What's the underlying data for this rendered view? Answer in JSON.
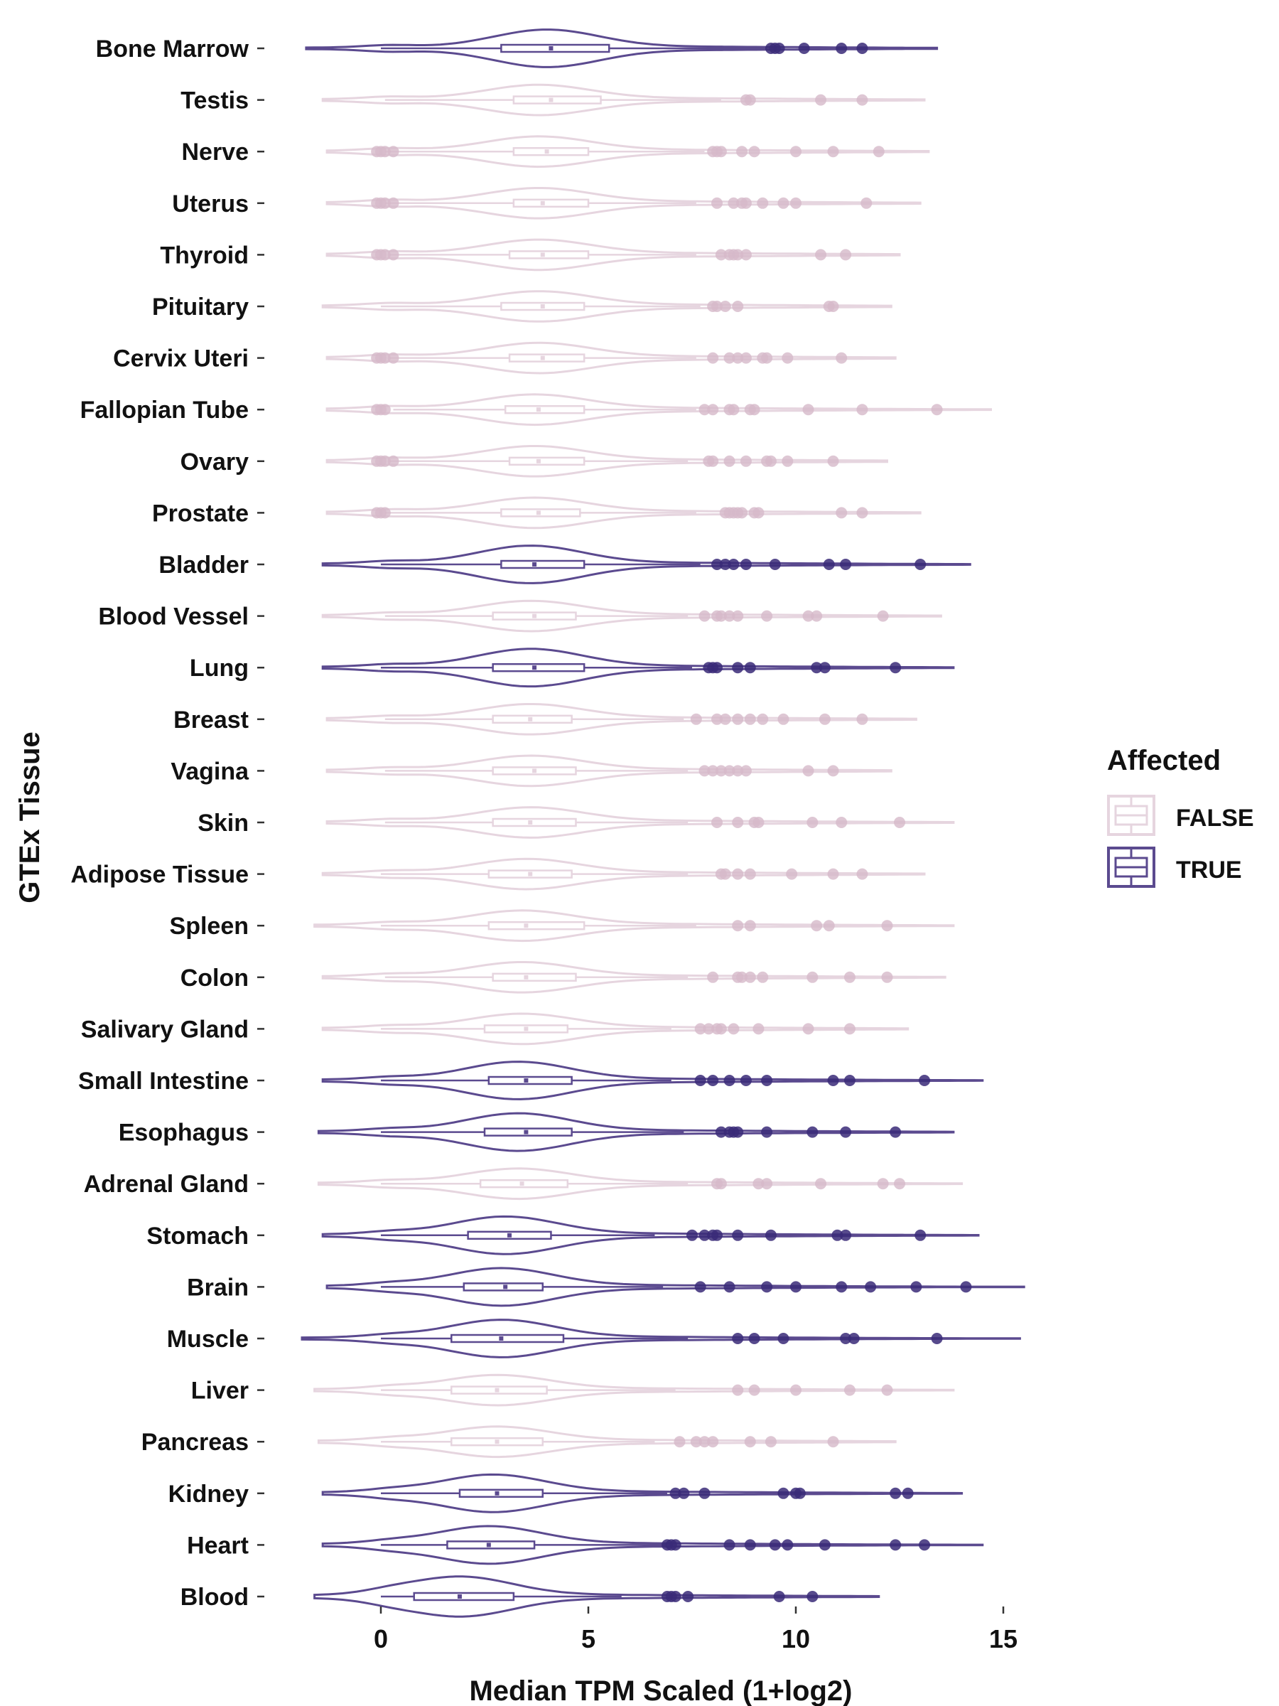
{
  "chart_data": {
    "type": "violin",
    "xlabel": "Median TPM Scaled (1+log2)",
    "ylabel": "GTEx Tissue",
    "xlim": [
      -1.9,
      15.5
    ],
    "xticks": [
      0,
      5,
      10,
      15
    ],
    "xtick_labels": [
      "0",
      "5",
      "10",
      "15"
    ],
    "grid": false,
    "legend": {
      "title": "Affected",
      "placement": "right",
      "entries": [
        {
          "label": "FALSE",
          "color": "#e6d5df"
        },
        {
          "label": "TRUE",
          "color": "#5b4a8f"
        }
      ]
    },
    "colors": {
      "FALSE": "#e6d5df",
      "TRUE": "#5b4a8f",
      "TRUE_point": "#3a2a78",
      "FALSE_point": "#d6b9c9"
    },
    "categories": [
      "Bone Marrow",
      "Testis",
      "Nerve",
      "Uterus",
      "Thyroid",
      "Pituitary",
      "Cervix Uteri",
      "Fallopian Tube",
      "Ovary",
      "Prostate",
      "Bladder",
      "Blood Vessel",
      "Lung",
      "Breast",
      "Vagina",
      "Skin",
      "Adipose Tissue",
      "Spleen",
      "Colon",
      "Salivary Gland",
      "Small Intestine",
      "Esophagus",
      "Adrenal Gland",
      "Stomach",
      "Brain",
      "Muscle",
      "Liver",
      "Pancreas",
      "Kidney",
      "Heart",
      "Blood"
    ],
    "series": [
      {
        "tissue": "Bone Marrow",
        "affected": true,
        "min": -1.8,
        "max": 13.4,
        "q1": 2.9,
        "median": 4.1,
        "q3": 5.5,
        "wlo": 0.0,
        "whi": 9.3,
        "mode": 4.0,
        "width": 0.7,
        "outliers": [
          9.4,
          9.5,
          9.6,
          10.2,
          11.1,
          11.6
        ]
      },
      {
        "tissue": "Testis",
        "affected": false,
        "min": -1.4,
        "max": 13.1,
        "q1": 3.2,
        "median": 4.1,
        "q3": 5.3,
        "wlo": 0.1,
        "whi": 8.2,
        "mode": 3.8,
        "width": 0.55,
        "outliers": [
          8.8,
          8.9,
          10.6,
          11.6
        ]
      },
      {
        "tissue": "Nerve",
        "affected": false,
        "min": -1.3,
        "max": 13.2,
        "q1": 3.2,
        "median": 4.0,
        "q3": 5.0,
        "wlo": 0.1,
        "whi": 7.8,
        "mode": 3.8,
        "width": 0.55,
        "outliers": [
          -0.1,
          0.0,
          0.1,
          0.3,
          8.0,
          8.1,
          8.2,
          8.7,
          9.0,
          10.0,
          10.9,
          12.0
        ]
      },
      {
        "tissue": "Uterus",
        "affected": false,
        "min": -1.3,
        "max": 13.0,
        "q1": 3.2,
        "median": 3.9,
        "q3": 5.0,
        "wlo": 0.1,
        "whi": 7.6,
        "mode": 3.8,
        "width": 0.55,
        "outliers": [
          -0.1,
          0.0,
          0.1,
          0.3,
          8.1,
          8.5,
          8.7,
          8.8,
          9.2,
          9.7,
          10.0,
          11.7
        ]
      },
      {
        "tissue": "Thyroid",
        "affected": false,
        "min": -1.3,
        "max": 12.5,
        "q1": 3.1,
        "median": 3.9,
        "q3": 5.0,
        "wlo": 0.2,
        "whi": 7.6,
        "mode": 3.8,
        "width": 0.55,
        "outliers": [
          -0.1,
          0.0,
          0.1,
          0.3,
          8.2,
          8.4,
          8.5,
          8.6,
          8.8,
          10.6,
          11.2
        ]
      },
      {
        "tissue": "Pituitary",
        "affected": false,
        "min": -1.4,
        "max": 12.3,
        "q1": 2.9,
        "median": 3.9,
        "q3": 4.9,
        "wlo": 0.0,
        "whi": 7.7,
        "mode": 3.8,
        "width": 0.55,
        "outliers": [
          8.0,
          8.1,
          8.3,
          8.6,
          10.8,
          10.9
        ]
      },
      {
        "tissue": "Cervix Uteri",
        "affected": false,
        "min": -1.3,
        "max": 12.4,
        "q1": 3.1,
        "median": 3.9,
        "q3": 4.9,
        "wlo": 0.2,
        "whi": 7.6,
        "mode": 3.8,
        "width": 0.55,
        "outliers": [
          -0.1,
          0.0,
          0.1,
          0.3,
          8.0,
          8.4,
          8.6,
          8.8,
          9.2,
          9.3,
          9.8,
          11.1
        ]
      },
      {
        "tissue": "Fallopian Tube",
        "affected": false,
        "min": -1.3,
        "max": 14.7,
        "q1": 3.0,
        "median": 3.8,
        "q3": 4.9,
        "wlo": 0.3,
        "whi": 7.6,
        "mode": 3.7,
        "width": 0.55,
        "outliers": [
          -0.1,
          0.0,
          0.1,
          7.8,
          8.0,
          8.4,
          8.5,
          8.9,
          9.0,
          10.3,
          11.6,
          13.4
        ]
      },
      {
        "tissue": "Ovary",
        "affected": false,
        "min": -1.3,
        "max": 12.2,
        "q1": 3.1,
        "median": 3.8,
        "q3": 4.9,
        "wlo": 0.2,
        "whi": 7.4,
        "mode": 3.7,
        "width": 0.55,
        "outliers": [
          -0.1,
          0.0,
          0.1,
          0.3,
          7.9,
          8.0,
          8.4,
          8.8,
          9.3,
          9.4,
          9.8,
          10.9
        ]
      },
      {
        "tissue": "Prostate",
        "affected": false,
        "min": -1.3,
        "max": 13.0,
        "q1": 2.9,
        "median": 3.8,
        "q3": 4.8,
        "wlo": 0.1,
        "whi": 7.6,
        "mode": 3.7,
        "width": 0.55,
        "outliers": [
          -0.1,
          0.0,
          0.1,
          8.3,
          8.4,
          8.5,
          8.6,
          8.7,
          9.0,
          9.1,
          11.1,
          11.6
        ]
      },
      {
        "tissue": "Bladder",
        "affected": true,
        "min": -1.4,
        "max": 14.2,
        "q1": 2.9,
        "median": 3.7,
        "q3": 4.9,
        "wlo": 0.0,
        "whi": 7.7,
        "mode": 3.6,
        "width": 0.7,
        "outliers": [
          8.1,
          8.3,
          8.5,
          8.8,
          9.5,
          10.8,
          11.2,
          13.0
        ]
      },
      {
        "tissue": "Blood Vessel",
        "affected": false,
        "min": -1.4,
        "max": 13.5,
        "q1": 2.7,
        "median": 3.7,
        "q3": 4.7,
        "wlo": 0.1,
        "whi": 7.4,
        "mode": 3.6,
        "width": 0.55,
        "outliers": [
          7.8,
          8.1,
          8.2,
          8.4,
          8.6,
          9.3,
          10.3,
          10.5,
          12.1
        ]
      },
      {
        "tissue": "Lung",
        "affected": true,
        "min": -1.4,
        "max": 13.8,
        "q1": 2.7,
        "median": 3.7,
        "q3": 4.9,
        "wlo": 0.0,
        "whi": 7.5,
        "mode": 3.6,
        "width": 0.7,
        "outliers": [
          7.9,
          8.0,
          8.1,
          8.6,
          8.9,
          10.5,
          10.7,
          12.4
        ]
      },
      {
        "tissue": "Breast",
        "affected": false,
        "min": -1.3,
        "max": 12.9,
        "q1": 2.7,
        "median": 3.6,
        "q3": 4.6,
        "wlo": 0.1,
        "whi": 7.3,
        "mode": 3.6,
        "width": 0.55,
        "outliers": [
          7.6,
          8.1,
          8.3,
          8.6,
          8.9,
          9.2,
          9.7,
          10.7,
          11.6
        ]
      },
      {
        "tissue": "Vagina",
        "affected": false,
        "min": -1.3,
        "max": 12.3,
        "q1": 2.7,
        "median": 3.7,
        "q3": 4.7,
        "wlo": 0.1,
        "whi": 7.4,
        "mode": 3.6,
        "width": 0.55,
        "outliers": [
          7.8,
          8.0,
          8.2,
          8.4,
          8.6,
          8.8,
          10.3,
          10.9
        ]
      },
      {
        "tissue": "Skin",
        "affected": false,
        "min": -1.3,
        "max": 13.8,
        "q1": 2.7,
        "median": 3.6,
        "q3": 4.7,
        "wlo": 0.1,
        "whi": 7.4,
        "mode": 3.6,
        "width": 0.55,
        "outliers": [
          8.1,
          8.6,
          9.0,
          9.1,
          10.4,
          11.1,
          12.5
        ]
      },
      {
        "tissue": "Adipose Tissue",
        "affected": false,
        "min": -1.4,
        "max": 13.1,
        "q1": 2.6,
        "median": 3.6,
        "q3": 4.6,
        "wlo": 0.0,
        "whi": 7.4,
        "mode": 3.5,
        "width": 0.55,
        "outliers": [
          8.2,
          8.3,
          8.6,
          8.9,
          9.9,
          10.9,
          11.6
        ]
      },
      {
        "tissue": "Spleen",
        "affected": false,
        "min": -1.6,
        "max": 13.8,
        "q1": 2.6,
        "median": 3.5,
        "q3": 4.9,
        "wlo": 0.0,
        "whi": 7.6,
        "mode": 3.4,
        "width": 0.55,
        "outliers": [
          8.6,
          8.9,
          10.5,
          10.8,
          12.2
        ]
      },
      {
        "tissue": "Colon",
        "affected": false,
        "min": -1.4,
        "max": 13.6,
        "q1": 2.7,
        "median": 3.5,
        "q3": 4.7,
        "wlo": 0.1,
        "whi": 7.4,
        "mode": 3.4,
        "width": 0.55,
        "outliers": [
          8.0,
          8.6,
          8.7,
          8.9,
          9.2,
          10.4,
          11.3,
          12.2
        ]
      },
      {
        "tissue": "Salivary Gland",
        "affected": false,
        "min": -1.4,
        "max": 12.7,
        "q1": 2.5,
        "median": 3.5,
        "q3": 4.5,
        "wlo": 0.0,
        "whi": 7.0,
        "mode": 3.4,
        "width": 0.55,
        "outliers": [
          7.7,
          7.9,
          8.1,
          8.2,
          8.5,
          9.1,
          10.3,
          11.3
        ]
      },
      {
        "tissue": "Small Intestine",
        "affected": true,
        "min": -1.4,
        "max": 14.5,
        "q1": 2.6,
        "median": 3.5,
        "q3": 4.6,
        "wlo": 0.0,
        "whi": 7.0,
        "mode": 3.3,
        "width": 0.7,
        "outliers": [
          7.7,
          8.0,
          8.4,
          8.8,
          9.3,
          10.9,
          11.3,
          13.1
        ]
      },
      {
        "tissue": "Esophagus",
        "affected": true,
        "min": -1.5,
        "max": 13.8,
        "q1": 2.5,
        "median": 3.5,
        "q3": 4.6,
        "wlo": 0.0,
        "whi": 7.3,
        "mode": 3.3,
        "width": 0.7,
        "outliers": [
          8.2,
          8.4,
          8.5,
          8.6,
          9.3,
          10.4,
          11.2,
          12.4
        ]
      },
      {
        "tissue": "Adrenal Gland",
        "affected": false,
        "min": -1.5,
        "max": 14.0,
        "q1": 2.4,
        "median": 3.4,
        "q3": 4.5,
        "wlo": 0.0,
        "whi": 7.4,
        "mode": 3.3,
        "width": 0.55,
        "outliers": [
          8.1,
          8.2,
          9.1,
          9.3,
          10.6,
          12.1,
          12.5
        ]
      },
      {
        "tissue": "Stomach",
        "affected": true,
        "min": -1.4,
        "max": 14.4,
        "q1": 2.1,
        "median": 3.1,
        "q3": 4.1,
        "wlo": 0.0,
        "whi": 6.6,
        "mode": 3.0,
        "width": 0.7,
        "outliers": [
          7.5,
          7.8,
          8.0,
          8.1,
          8.6,
          9.4,
          11.0,
          11.2,
          13.0
        ]
      },
      {
        "tissue": "Brain",
        "affected": true,
        "min": -1.3,
        "max": 15.5,
        "q1": 2.0,
        "median": 3.0,
        "q3": 3.9,
        "wlo": 0.0,
        "whi": 6.8,
        "mode": 2.9,
        "width": 0.7,
        "outliers": [
          7.7,
          8.4,
          9.3,
          10.0,
          11.1,
          11.8,
          12.9,
          14.1
        ]
      },
      {
        "tissue": "Muscle",
        "affected": true,
        "min": -1.9,
        "max": 15.4,
        "q1": 1.7,
        "median": 2.9,
        "q3": 4.4,
        "wlo": 0.0,
        "whi": 7.4,
        "mode": 2.9,
        "width": 0.7,
        "outliers": [
          8.6,
          9.0,
          9.7,
          11.2,
          11.4,
          13.4
        ]
      },
      {
        "tissue": "Liver",
        "affected": false,
        "min": -1.6,
        "max": 13.8,
        "q1": 1.7,
        "median": 2.8,
        "q3": 4.0,
        "wlo": 0.0,
        "whi": 7.1,
        "mode": 2.8,
        "width": 0.55,
        "outliers": [
          8.6,
          9.0,
          10.0,
          11.3,
          12.2
        ]
      },
      {
        "tissue": "Pancreas",
        "affected": false,
        "min": -1.5,
        "max": 12.4,
        "q1": 1.7,
        "median": 2.8,
        "q3": 3.9,
        "wlo": 0.0,
        "whi": 6.6,
        "mode": 2.8,
        "width": 0.55,
        "outliers": [
          7.2,
          7.6,
          7.8,
          8.0,
          8.9,
          9.4,
          10.9
        ]
      },
      {
        "tissue": "Kidney",
        "affected": true,
        "min": -1.4,
        "max": 14.0,
        "q1": 1.9,
        "median": 2.8,
        "q3": 3.9,
        "wlo": 0.0,
        "whi": 6.9,
        "mode": 2.7,
        "width": 0.7,
        "outliers": [
          7.1,
          7.3,
          7.8,
          9.7,
          10.0,
          10.1,
          12.4,
          12.7
        ]
      },
      {
        "tissue": "Heart",
        "affected": true,
        "min": -1.4,
        "max": 14.5,
        "q1": 1.6,
        "median": 2.6,
        "q3": 3.7,
        "wlo": 0.0,
        "whi": 6.9,
        "mode": 2.6,
        "width": 0.7,
        "outliers": [
          6.9,
          7.0,
          7.1,
          8.4,
          8.9,
          9.5,
          9.8,
          10.7,
          12.4,
          13.1
        ]
      },
      {
        "tissue": "Blood",
        "affected": true,
        "min": -1.6,
        "max": 12.0,
        "q1": 0.8,
        "median": 1.9,
        "q3": 3.2,
        "wlo": 0.0,
        "whi": 5.8,
        "mode": 1.9,
        "width": 0.75,
        "outliers": [
          6.9,
          7.0,
          7.1,
          7.4,
          9.6,
          10.4
        ]
      }
    ]
  }
}
